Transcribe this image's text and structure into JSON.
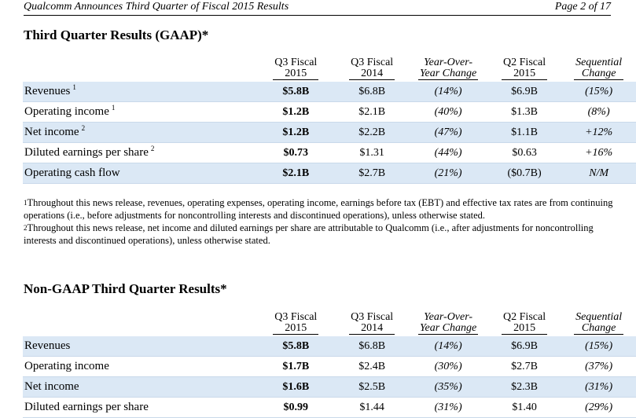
{
  "header": {
    "left": "Qualcomm Announces Third Quarter of Fiscal 2015 Results",
    "right": "Page 2 of 17"
  },
  "columns": {
    "c1a": "Q3 Fiscal",
    "c1b": "2015",
    "c2a": "Q3 Fiscal",
    "c2b": "2014",
    "c3a": "Year-Over-",
    "c3b": "Year Change",
    "c4a": "Q2 Fiscal",
    "c4b": "2015",
    "c5a": "Sequential",
    "c5b": "Change"
  },
  "gaap": {
    "title": "Third Quarter Results (GAAP)*",
    "rows": [
      {
        "label": "Revenues",
        "sup": "1",
        "q3_2015": "$5.8B",
        "q3_2014": "$6.8B",
        "yoy": "(14%)",
        "q2_2015": "$6.9B",
        "seq": "(15%)"
      },
      {
        "label": "Operating income",
        "sup": "1",
        "q3_2015": "$1.2B",
        "q3_2014": "$2.1B",
        "yoy": "(40%)",
        "q2_2015": "$1.3B",
        "seq": "(8%)"
      },
      {
        "label": "Net income",
        "sup": "2",
        "q3_2015": "$1.2B",
        "q3_2014": "$2.2B",
        "yoy": "(47%)",
        "q2_2015": "$1.1B",
        "seq": "+12%"
      },
      {
        "label": "Diluted earnings per share",
        "sup": "2",
        "q3_2015": "$0.73",
        "q3_2014": "$1.31",
        "yoy": "(44%)",
        "q2_2015": "$0.63",
        "seq": "+16%"
      },
      {
        "label": "Operating cash flow",
        "sup": "",
        "q3_2015": "$2.1B",
        "q3_2014": "$2.7B",
        "yoy": "(21%)",
        "q2_2015": "($0.7B)",
        "seq": "N/M"
      }
    ]
  },
  "footnotes": {
    "fn1_mark": "1",
    "fn1": "Throughout this news release, revenues, operating expenses, operating income, earnings before tax (EBT) and effective tax rates are from continuing operations (i.e., before adjustments for noncontrolling interests and discontinued operations), unless otherwise stated.",
    "fn2_mark": "2",
    "fn2": "Throughout this news release, net income and diluted earnings per share are attributable to Qualcomm (i.e., after adjustments for noncontrolling interests and discontinued operations), unless otherwise stated."
  },
  "nongaap": {
    "title": "Non-GAAP Third Quarter Results*",
    "rows": [
      {
        "label": "Revenues",
        "q3_2015": "$5.8B",
        "q3_2014": "$6.8B",
        "yoy": "(14%)",
        "q2_2015": "$6.9B",
        "seq": "(15%)"
      },
      {
        "label": "Operating income",
        "q3_2015": "$1.7B",
        "q3_2014": "$2.4B",
        "yoy": "(30%)",
        "q2_2015": "$2.7B",
        "seq": "(37%)"
      },
      {
        "label": "Net income",
        "q3_2015": "$1.6B",
        "q3_2014": "$2.5B",
        "yoy": "(35%)",
        "q2_2015": "$2.3B",
        "seq": "(31%)"
      },
      {
        "label": "Diluted earnings per share",
        "q3_2015": "$0.99",
        "q3_2014": "$1.44",
        "yoy": "(31%)",
        "q2_2015": "$1.40",
        "seq": "(29%)"
      }
    ]
  }
}
